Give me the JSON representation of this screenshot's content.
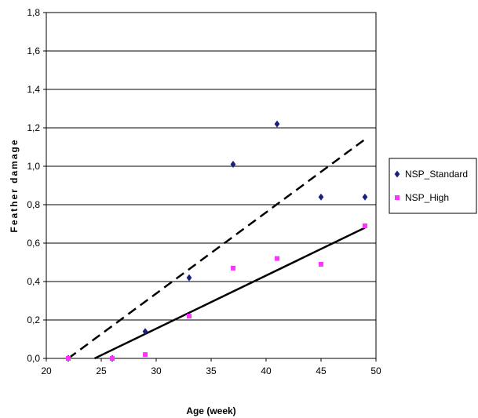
{
  "chart_data": {
    "type": "scatter",
    "title": "",
    "xlabel": "Age (week)",
    "ylabel": "Feather damage",
    "xlim": [
      20,
      50
    ],
    "ylim": [
      0,
      1.8
    ],
    "x_ticks": [
      "20",
      "25",
      "30",
      "35",
      "40",
      "45",
      "50"
    ],
    "y_ticks": [
      "0,0",
      "0,2",
      "0,4",
      "0,6",
      "0,8",
      "1,0",
      "1,2",
      "1,4",
      "1,6",
      "1,8"
    ],
    "grid": "horizontal",
    "legend_position": "right",
    "series": [
      {
        "name": "NSP_Standard",
        "marker": "diamond",
        "color": "#1a1f7a",
        "points": [
          [
            22,
            0.0
          ],
          [
            26,
            0.0
          ],
          [
            29,
            0.14
          ],
          [
            33,
            0.42
          ],
          [
            37,
            1.01
          ],
          [
            41,
            1.22
          ],
          [
            45,
            0.84
          ],
          [
            49,
            0.84
          ]
        ]
      },
      {
        "name": "NSP_High",
        "marker": "square",
        "color": "#ff33ff",
        "points": [
          [
            22,
            0.0
          ],
          [
            26,
            0.0
          ],
          [
            29,
            0.02
          ],
          [
            33,
            0.22
          ],
          [
            37,
            0.47
          ],
          [
            41,
            0.52
          ],
          [
            45,
            0.49
          ],
          [
            49,
            0.69
          ]
        ]
      }
    ],
    "trendlines": [
      {
        "series": "NSP_Standard",
        "style": "dashed",
        "color": "#000000",
        "points": [
          [
            22,
            0.0
          ],
          [
            49,
            1.14
          ]
        ]
      },
      {
        "series": "NSP_High",
        "style": "solid",
        "color": "#000000",
        "points": [
          [
            24.4,
            0.0
          ],
          [
            49,
            0.68
          ]
        ]
      }
    ]
  }
}
